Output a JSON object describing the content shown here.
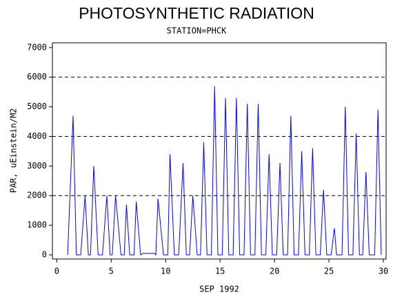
{
  "chart_data": {
    "type": "line",
    "title": "PHOTOSYNTHETIC RADIATION",
    "subtitle": "STATION=PHCK",
    "xlabel": "SEP 1992",
    "ylabel": "PAR, uEinstein/M2",
    "color": "#0000ff",
    "xlim": [
      -0.4,
      30.25
    ],
    "ylim": [
      -140,
      7160
    ],
    "xticks": [
      0,
      5,
      10,
      15,
      20,
      25,
      30
    ],
    "yticks": [
      0,
      1000,
      2000,
      3000,
      4000,
      5000,
      6000,
      7000
    ],
    "hlines": [
      2000,
      4000,
      6000
    ],
    "x": [
      1.0,
      1.5,
      1.8,
      2.2,
      2.6,
      2.9,
      3.1,
      3.4,
      3.8,
      4.2,
      4.6,
      4.9,
      5.1,
      5.4,
      5.9,
      6.2,
      6.4,
      6.7,
      7.1,
      7.3,
      7.7,
      7.9,
      8.5,
      9.0,
      9.1,
      9.3,
      9.8,
      10.2,
      10.4,
      10.8,
      11.2,
      11.6,
      11.9,
      12.2,
      12.5,
      12.9,
      13.2,
      13.5,
      13.8,
      14.2,
      14.5,
      14.8,
      15.2,
      15.5,
      15.8,
      16.2,
      16.5,
      16.8,
      17.2,
      17.5,
      17.8,
      18.2,
      18.5,
      18.8,
      19.2,
      19.5,
      19.8,
      20.2,
      20.5,
      20.8,
      21.2,
      21.5,
      21.8,
      22.2,
      22.5,
      22.8,
      23.2,
      23.5,
      23.8,
      24.2,
      24.5,
      24.8,
      25.2,
      25.5,
      25.7,
      26.2,
      26.5,
      26.8,
      27.2,
      27.5,
      27.8,
      28.1,
      28.4,
      28.7,
      29.2,
      29.5,
      29.8
    ],
    "values": [
      0,
      4700,
      0,
      0,
      2000,
      0,
      0,
      3000,
      0,
      0,
      2000,
      0,
      0,
      2000,
      0,
      0,
      1700,
      0,
      0,
      1800,
      0,
      50,
      50,
      50,
      0,
      1900,
      0,
      0,
      3400,
      0,
      0,
      3100,
      0,
      0,
      2000,
      0,
      0,
      3800,
      0,
      0,
      5700,
      0,
      0,
      5300,
      0,
      0,
      5300,
      0,
      0,
      5100,
      0,
      0,
      5100,
      0,
      0,
      3400,
      0,
      0,
      3100,
      0,
      0,
      4700,
      0,
      0,
      3500,
      0,
      0,
      3600,
      0,
      0,
      2200,
      0,
      0,
      900,
      0,
      0,
      5000,
      0,
      0,
      4100,
      0,
      0,
      2800,
      0,
      0,
      4900,
      0
    ]
  }
}
